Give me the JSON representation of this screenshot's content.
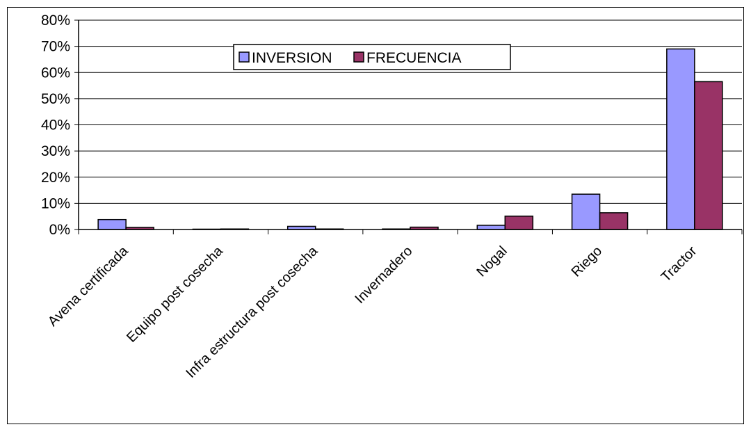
{
  "chart_data": {
    "type": "bar",
    "title": "",
    "xlabel": "",
    "ylabel": "",
    "categories": [
      "Avena certificada",
      "Equipo post cosecha",
      "Infra estructura post cosecha",
      "Invernadero",
      "Nogal",
      "Riego",
      "Tractor"
    ],
    "series": [
      {
        "name": "INVERSION",
        "color": "#9999FF",
        "values": [
          3.8,
          0.0,
          1.2,
          0.2,
          1.6,
          13.5,
          69.0
        ]
      },
      {
        "name": "FRECUENCIA",
        "color": "#993366",
        "values": [
          0.8,
          0.2,
          0.2,
          0.9,
          5.1,
          6.4,
          56.5
        ]
      }
    ],
    "ylim": [
      0,
      80
    ],
    "yticks": [
      "0%",
      "10%",
      "20%",
      "30%",
      "40%",
      "50%",
      "60%",
      "70%",
      "80%"
    ],
    "grid": true,
    "legend_position": "top-center"
  }
}
